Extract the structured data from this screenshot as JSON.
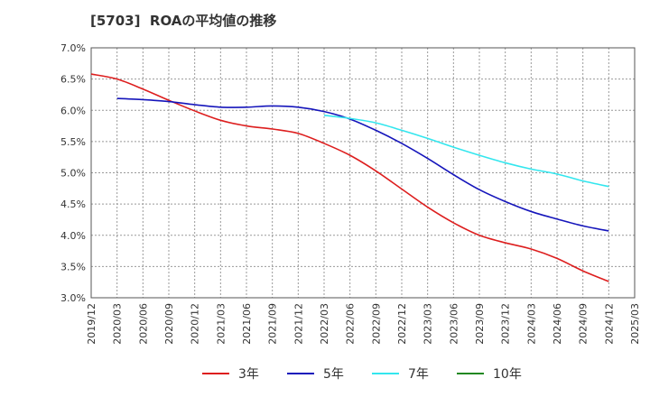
{
  "title": "[5703]  ROAの平均値の推移",
  "chart_data": {
    "type": "line",
    "title": "[5703]  ROAの平均値の推移",
    "xlabel": "",
    "ylabel": "",
    "x": [
      "2019/12",
      "2020/03",
      "2020/06",
      "2020/09",
      "2020/12",
      "2021/03",
      "2021/06",
      "2021/09",
      "2021/12",
      "2022/03",
      "2022/06",
      "2022/09",
      "2022/12",
      "2023/03",
      "2023/06",
      "2023/09",
      "2023/12",
      "2024/03",
      "2024/06",
      "2024/09",
      "2024/12",
      "2025/03"
    ],
    "ylim": [
      3.0,
      7.0
    ],
    "yticks": [
      "3.0%",
      "3.5%",
      "4.0%",
      "4.5%",
      "5.0%",
      "5.5%",
      "6.0%",
      "6.5%",
      "7.0%"
    ],
    "grid": true,
    "legend_position": "bottom",
    "series": [
      {
        "name": "3年",
        "color": "#dd1e1e",
        "values": [
          6.58,
          6.5,
          6.34,
          6.16,
          5.99,
          5.84,
          5.75,
          5.7,
          5.63,
          5.47,
          5.28,
          5.03,
          4.74,
          4.45,
          4.2,
          4.0,
          3.88,
          3.78,
          3.63,
          3.43,
          3.26,
          null
        ]
      },
      {
        "name": "5年",
        "color": "#1515bb",
        "values": [
          null,
          6.19,
          6.17,
          6.14,
          6.09,
          6.05,
          6.05,
          6.07,
          6.05,
          5.98,
          5.86,
          5.68,
          5.47,
          5.23,
          4.97,
          4.73,
          4.54,
          4.38,
          4.26,
          4.15,
          4.07,
          null
        ]
      },
      {
        "name": "7年",
        "color": "#33e6ee",
        "values": [
          null,
          null,
          null,
          null,
          null,
          null,
          null,
          null,
          null,
          5.92,
          5.87,
          5.8,
          5.68,
          5.55,
          5.41,
          5.28,
          5.16,
          5.06,
          4.98,
          4.87,
          4.78,
          null
        ]
      },
      {
        "name": "10年",
        "color": "#228822",
        "values": [
          null,
          null,
          null,
          null,
          null,
          null,
          null,
          null,
          null,
          null,
          null,
          null,
          null,
          null,
          null,
          null,
          null,
          null,
          null,
          null,
          null,
          null
        ]
      }
    ]
  }
}
